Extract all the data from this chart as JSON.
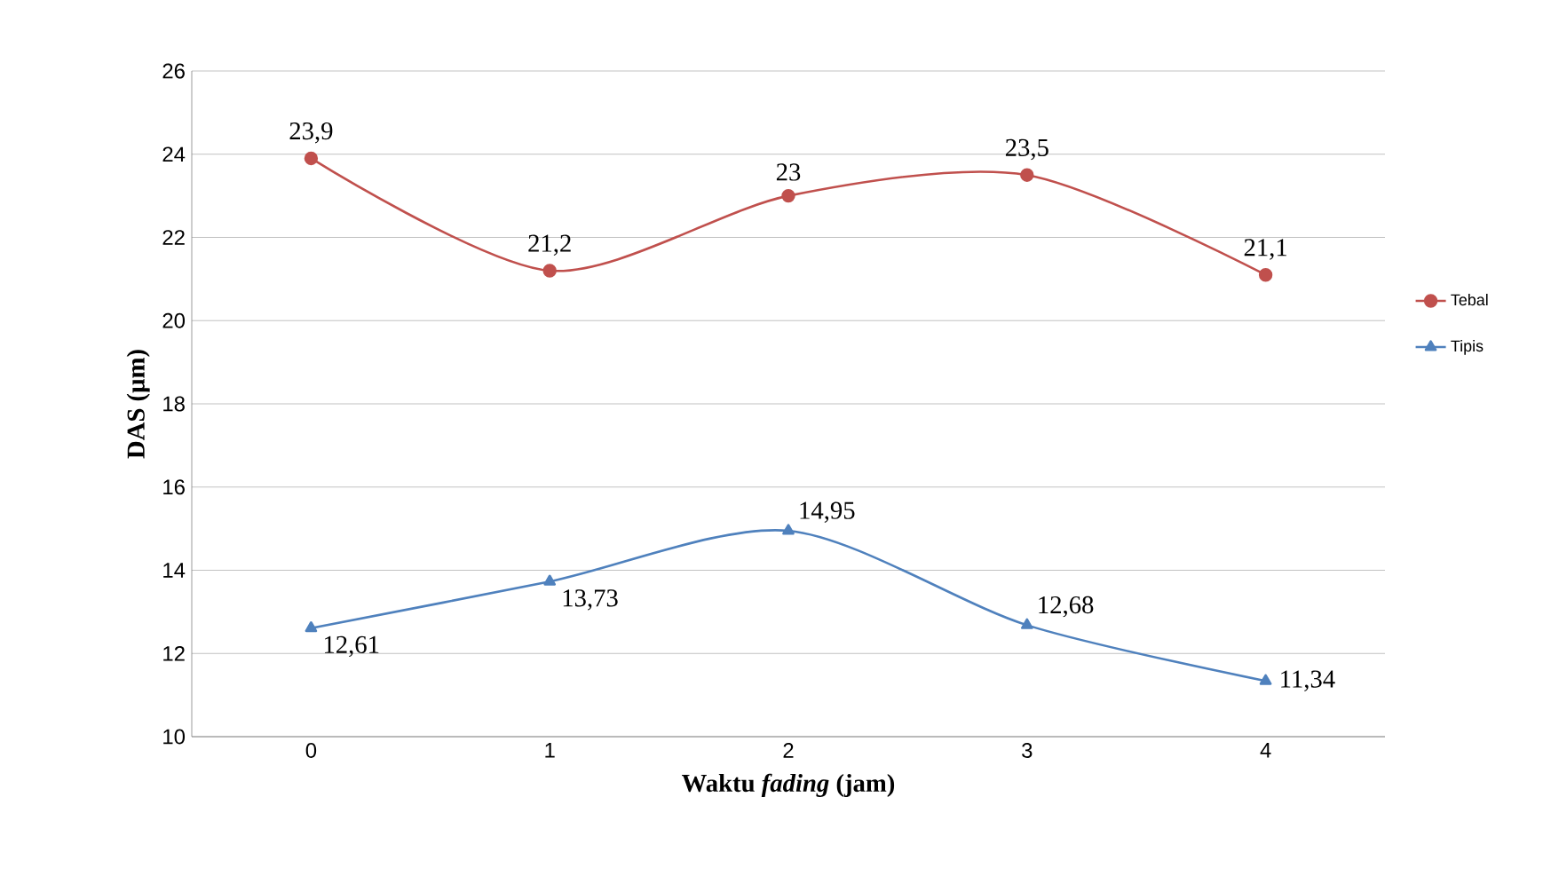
{
  "chart_data": {
    "type": "line",
    "xlabel": "Waktu *fading* (jam)",
    "ylabel": "DAS (µm)",
    "categories": [
      "0",
      "1",
      "2",
      "3",
      "4"
    ],
    "series": [
      {
        "name": "Tebal",
        "color": "#c0504d",
        "marker": "circle",
        "values": [
          23.9,
          21.2,
          23,
          23.5,
          21.1
        ],
        "value_labels": [
          "23,9",
          "21,2",
          "23",
          "23,5",
          "21,1"
        ]
      },
      {
        "name": "Tipis",
        "color": "#4f81bd",
        "marker": "triangle",
        "values": [
          12.61,
          13.73,
          14.95,
          12.68,
          11.34
        ],
        "value_labels": [
          "12,61",
          "13,73",
          "14,95",
          "12,68",
          "11,34"
        ]
      }
    ],
    "ylim": [
      10,
      26
    ],
    "yticks": [
      10,
      12,
      14,
      16,
      18,
      20,
      22,
      24,
      26
    ],
    "grid": "y",
    "legend": "right",
    "line_style": "solid"
  }
}
